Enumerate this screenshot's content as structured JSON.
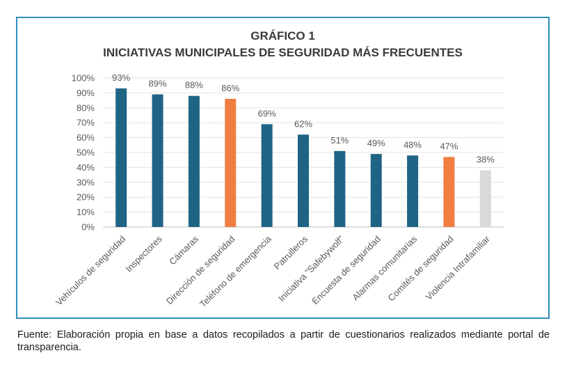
{
  "chart_data": {
    "type": "bar",
    "title": "GRÁFICO 1",
    "subtitle": "INICIATIVAS MUNICIPALES DE SEGURIDAD MÁS FRECUENTES",
    "categories": [
      "Vehículos de seguridad",
      "Inspectores",
      "Cámaras",
      "Dirección de seguridad",
      "Teléfono de emergencia",
      "Patrulleros",
      "Iniciativa \"Safebywolf\"",
      "Encuesta de seguridad",
      "Alarmas comunitarias",
      "Comités de seguridad",
      "Violencia Intrafamiliar"
    ],
    "values": [
      93,
      89,
      88,
      86,
      69,
      62,
      51,
      49,
      48,
      47,
      38
    ],
    "value_labels": [
      "93%",
      "89%",
      "88%",
      "86%",
      "69%",
      "62%",
      "51%",
      "49%",
      "48%",
      "47%",
      "38%"
    ],
    "bar_colors": [
      "#1f6485",
      "#1f6485",
      "#1f6485",
      "#f07d41",
      "#1f6485",
      "#1f6485",
      "#1f6485",
      "#1f6485",
      "#1f6485",
      "#f07d41",
      "#d9d9d9"
    ],
    "ylim": [
      0,
      100
    ],
    "yticks": [
      "0%",
      "10%",
      "20%",
      "30%",
      "40%",
      "50%",
      "60%",
      "70%",
      "80%",
      "90%",
      "100%"
    ],
    "xlabel": "",
    "ylabel": "",
    "grid": true,
    "legend": "none"
  },
  "footer": {
    "source": "Fuente: Elaboración propia en base a datos recopilados a partir de cuestionarios realizados mediante portal de transparencia."
  }
}
